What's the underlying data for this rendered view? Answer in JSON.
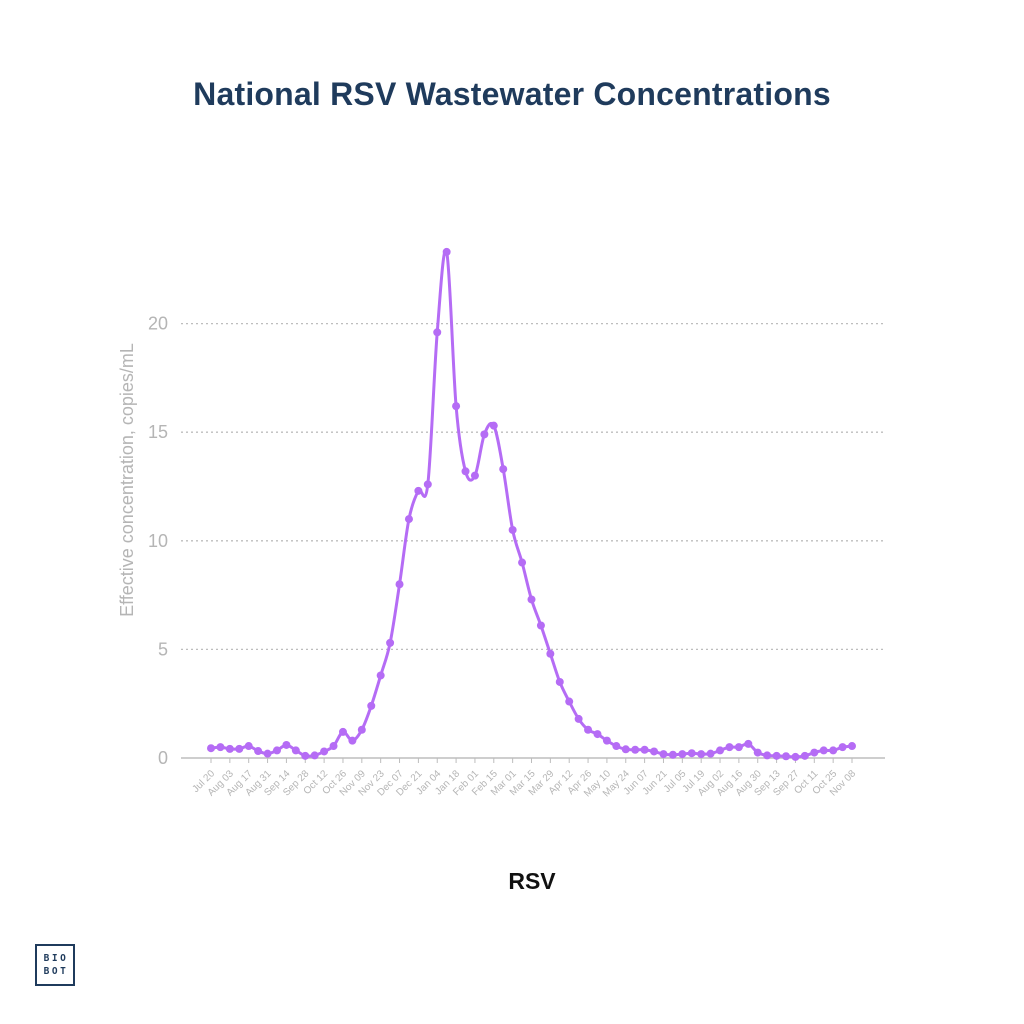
{
  "title": "National RSV Wastewater Concentrations",
  "caption": "RSV",
  "logo": {
    "line1": "BIO",
    "line2": "BOT"
  },
  "colors": {
    "title": "#1f3b5c",
    "series": "#b56cf5",
    "grid": "#bdbdbd",
    "axis_text": "#b5b5b5"
  },
  "chart_data": {
    "type": "line",
    "ylabel": "Effective concentration, copies/mL",
    "xlabel": "",
    "ylim": [
      0,
      25
    ],
    "yticks": [
      0,
      5,
      10,
      15,
      20
    ],
    "grid": "horizontal dotted",
    "xtick_labels": [
      "Jul 20",
      "Aug 03",
      "Aug 17",
      "Aug 31",
      "Sep 14",
      "Sep 28",
      "Oct 12",
      "Oct 26",
      "Nov 09",
      "Nov 23",
      "Dec 07",
      "Dec 21",
      "Jan 04",
      "Jan 18",
      "Feb 01",
      "Feb 15",
      "Mar 01",
      "Mar 15",
      "Mar 29",
      "Apr 12",
      "Apr 26",
      "May 10",
      "May 24",
      "Jun 07",
      "Jun 21",
      "Jul 05",
      "Jul 19",
      "Aug 02",
      "Aug 16",
      "Aug 30",
      "Sep 13",
      "Sep 27",
      "Oct 11",
      "Oct 25",
      "Nov 08"
    ],
    "series": [
      {
        "color": "#b56cf5",
        "values": [
          0.45,
          0.5,
          0.42,
          0.42,
          0.55,
          0.32,
          0.2,
          0.35,
          0.6,
          0.35,
          0.1,
          0.12,
          0.3,
          0.55,
          1.2,
          0.8,
          1.3,
          2.4,
          3.8,
          5.3,
          8.0,
          11.0,
          12.3,
          12.6,
          19.6,
          23.3,
          16.2,
          13.2,
          13.0,
          14.9,
          15.3,
          13.3,
          10.5,
          9.0,
          7.3,
          6.1,
          4.8,
          3.5,
          2.6,
          1.8,
          1.3,
          1.1,
          0.8,
          0.55,
          0.4,
          0.38,
          0.38,
          0.3,
          0.18,
          0.15,
          0.18,
          0.22,
          0.18,
          0.2,
          0.35,
          0.5,
          0.5,
          0.65,
          0.25,
          0.12,
          0.1,
          0.08,
          0.05,
          0.1,
          0.25,
          0.35,
          0.35,
          0.5,
          0.55
        ]
      }
    ]
  }
}
